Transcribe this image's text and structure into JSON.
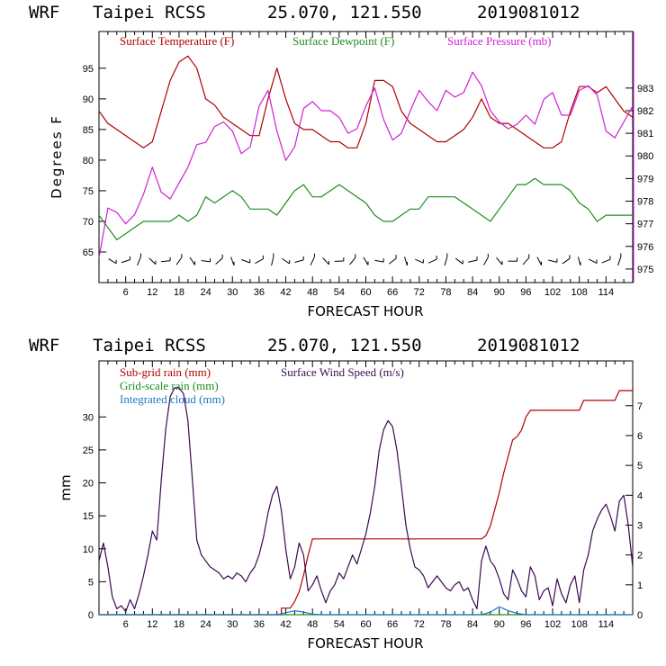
{
  "chart_data": [
    {
      "type": "line",
      "header": {
        "model": "WRF",
        "site": "Taipei RCSS",
        "coords": "25.070, 121.550",
        "init": "2019081012"
      },
      "xlabel": "FORECAST HOUR",
      "ylabel": "Degrees F",
      "xlim": [
        0,
        120
      ],
      "ylim": [
        60,
        101
      ],
      "y2lim": [
        974.4,
        985.5
      ],
      "xticks": [
        "6",
        "12",
        "18",
        "24",
        "30",
        "36",
        "42",
        "48",
        "54",
        "60",
        "66",
        "72",
        "78",
        "84",
        "90",
        "96",
        "102",
        "108",
        "114"
      ],
      "yticks": [
        "65",
        "70",
        "75",
        "80",
        "85",
        "90",
        "95"
      ],
      "y2ticks": [
        "975",
        "976",
        "977",
        "978",
        "979",
        "980",
        "981",
        "982",
        "983"
      ],
      "colors": {
        "temp": "#b00000",
        "dew": "#1e8c1e",
        "pres": "#d020d0",
        "barb": "#000000"
      },
      "series": [
        {
          "name": "Surface Temperature (F)",
          "key": "temp",
          "axis": "left",
          "x": [
            0,
            2,
            4,
            6,
            8,
            10,
            12,
            14,
            16,
            18,
            20,
            22,
            24,
            26,
            28,
            30,
            32,
            34,
            36,
            38,
            40,
            42,
            44,
            46,
            48,
            50,
            52,
            54,
            56,
            58,
            60,
            62,
            64,
            66,
            68,
            70,
            72,
            74,
            76,
            78,
            80,
            82,
            84,
            86,
            88,
            90,
            92,
            94,
            96,
            98,
            100,
            102,
            104,
            106,
            108,
            110,
            112,
            114,
            116,
            118,
            120
          ],
          "y": [
            88,
            86,
            85,
            84,
            83,
            82,
            83,
            88,
            93,
            96,
            97,
            95,
            90,
            89,
            87,
            86,
            85,
            84,
            84,
            90,
            95,
            90,
            86,
            85,
            85,
            84,
            83,
            83,
            82,
            82,
            86,
            93,
            93,
            92,
            88,
            86,
            85,
            84,
            83,
            83,
            84,
            85,
            87,
            90,
            87,
            86,
            86,
            85,
            84,
            83,
            82,
            82,
            83,
            88,
            92,
            92,
            91,
            92,
            90,
            88,
            87
          ]
        },
        {
          "name": "Surface Dewpoint (F)",
          "key": "dew",
          "axis": "left",
          "x": [
            0,
            2,
            4,
            6,
            8,
            10,
            12,
            14,
            16,
            18,
            20,
            22,
            24,
            26,
            28,
            30,
            32,
            34,
            36,
            38,
            40,
            42,
            44,
            46,
            48,
            50,
            52,
            54,
            56,
            58,
            60,
            62,
            64,
            66,
            68,
            70,
            72,
            74,
            76,
            78,
            80,
            82,
            84,
            86,
            88,
            90,
            92,
            94,
            96,
            98,
            100,
            102,
            104,
            106,
            108,
            110,
            112,
            114,
            116,
            118,
            120
          ],
          "y": [
            71,
            69,
            67,
            68,
            69,
            70,
            70,
            70,
            70,
            71,
            70,
            71,
            74,
            73,
            74,
            75,
            74,
            72,
            72,
            72,
            71,
            73,
            75,
            76,
            74,
            74,
            75,
            76,
            75,
            74,
            73,
            71,
            70,
            70,
            71,
            72,
            72,
            74,
            74,
            74,
            74,
            73,
            72,
            71,
            70,
            72,
            74,
            76,
            76,
            77,
            76,
            76,
            76,
            75,
            73,
            72,
            70,
            71,
            71,
            71,
            71
          ]
        },
        {
          "name": "Surface Pressure (mb)",
          "key": "pres",
          "axis": "right",
          "x": [
            0,
            2,
            4,
            6,
            8,
            10,
            12,
            14,
            16,
            18,
            20,
            22,
            24,
            26,
            28,
            30,
            32,
            34,
            36,
            38,
            40,
            42,
            44,
            46,
            48,
            50,
            52,
            54,
            56,
            58,
            60,
            62,
            64,
            66,
            68,
            70,
            72,
            74,
            76,
            78,
            80,
            82,
            84,
            86,
            88,
            90,
            92,
            94,
            96,
            98,
            100,
            102,
            104,
            106,
            108,
            110,
            112,
            114,
            116,
            118,
            120
          ],
          "y": [
            975.5,
            977.7,
            977.5,
            977.0,
            977.4,
            978.3,
            979.5,
            978.4,
            978.1,
            978.8,
            979.5,
            980.5,
            980.6,
            981.3,
            981.5,
            981.1,
            980.1,
            980.4,
            982.2,
            982.9,
            981.1,
            979.8,
            980.4,
            982.1,
            982.4,
            982.0,
            982.0,
            981.7,
            981.0,
            981.2,
            982.2,
            983.0,
            981.6,
            980.7,
            981.0,
            982.0,
            982.9,
            982.4,
            982.0,
            982.9,
            982.6,
            982.8,
            983.7,
            983.1,
            982.0,
            981.5,
            981.2,
            981.4,
            981.8,
            981.4,
            982.5,
            982.8,
            981.8,
            981.8,
            982.9,
            983.1,
            982.7,
            981.1,
            980.8,
            981.5,
            982.2
          ]
        }
      ],
      "wind_barbs_note": "wind barbs along bottom"
    },
    {
      "type": "line",
      "header": {
        "model": "WRF",
        "site": "Taipei RCSS",
        "coords": "25.070, 121.550",
        "init": "2019081012"
      },
      "xlabel": "FORECAST HOUR",
      "ylabel": "mm",
      "xlim": [
        0,
        120
      ],
      "ylim": [
        0,
        38.5
      ],
      "y2lim": [
        0,
        8.5
      ],
      "xticks": [
        "6",
        "12",
        "18",
        "24",
        "30",
        "36",
        "42",
        "48",
        "54",
        "60",
        "66",
        "72",
        "78",
        "84",
        "90",
        "96",
        "102",
        "108",
        "114"
      ],
      "yticks": [
        "0",
        "5",
        "10",
        "15",
        "20",
        "25",
        "30"
      ],
      "y2ticks": [
        "0",
        "1",
        "2",
        "3",
        "4",
        "5",
        "6",
        "7"
      ],
      "colors": {
        "sub": "#b00000",
        "grid": "#1e8c1e",
        "cloud": "#1c78c8",
        "wind": "#3a0a50"
      },
      "series": [
        {
          "name": "Sub-grid rain (mm)",
          "key": "sub",
          "axis": "left",
          "x": [
            0,
            41,
            41,
            43,
            44,
            45,
            46,
            47,
            48,
            86,
            87,
            88,
            89,
            90,
            91,
            92,
            93,
            94,
            95,
            96,
            97,
            98,
            99,
            100,
            108,
            109,
            110,
            116,
            117,
            120
          ],
          "y": [
            0,
            0,
            1,
            1,
            2,
            3.5,
            6,
            9,
            11.5,
            11.5,
            12,
            13.5,
            16,
            18.5,
            21.5,
            24,
            26.5,
            27,
            28,
            30,
            31,
            31,
            31,
            31,
            31,
            32.5,
            32.5,
            32.5,
            34,
            34
          ]
        },
        {
          "name": "Grid-scale rain (mm)",
          "key": "grid",
          "axis": "left",
          "x": [
            0,
            120
          ],
          "y": [
            0,
            0
          ]
        },
        {
          "name": "Integrated cloud (mm)",
          "key": "cloud",
          "axis": "left",
          "x": [
            0,
            40,
            42,
            44,
            46,
            48,
            50,
            86,
            88,
            90,
            92,
            94,
            96,
            120
          ],
          "y": [
            0,
            0,
            0.3,
            0.6,
            0.4,
            0.1,
            0,
            0,
            0.4,
            1.2,
            0.6,
            0.2,
            0,
            0
          ]
        },
        {
          "name": "Surface Wind Speed (m/s)",
          "key": "wind",
          "axis": "right",
          "x": [
            0,
            1,
            2,
            3,
            4,
            5,
            6,
            7,
            8,
            9,
            10,
            11,
            12,
            13,
            14,
            15,
            16,
            17,
            18,
            19,
            20,
            21,
            22,
            23,
            24,
            25,
            26,
            27,
            28,
            29,
            30,
            31,
            32,
            33,
            34,
            35,
            36,
            37,
            38,
            39,
            40,
            41,
            42,
            43,
            44,
            45,
            46,
            47,
            48,
            49,
            50,
            51,
            52,
            53,
            54,
            55,
            56,
            57,
            58,
            59,
            60,
            61,
            62,
            63,
            64,
            65,
            66,
            67,
            68,
            69,
            70,
            71,
            72,
            73,
            74,
            75,
            76,
            77,
            78,
            79,
            80,
            81,
            82,
            83,
            84,
            85,
            86,
            87,
            88,
            89,
            90,
            91,
            92,
            93,
            94,
            95,
            96,
            97,
            98,
            99,
            100,
            101,
            102,
            103,
            104,
            105,
            106,
            107,
            108,
            109,
            110,
            111,
            112,
            113,
            114,
            115,
            116,
            117,
            118,
            119,
            120
          ],
          "y": [
            1.8,
            2.4,
            1.6,
            0.6,
            0.2,
            0.3,
            0.1,
            0.5,
            0.2,
            0.7,
            1.3,
            2.0,
            2.8,
            2.5,
            4.5,
            6.2,
            7.3,
            7.6,
            7.6,
            7.4,
            6.5,
            4.5,
            2.5,
            2.0,
            1.8,
            1.6,
            1.5,
            1.4,
            1.2,
            1.3,
            1.2,
            1.4,
            1.3,
            1.1,
            1.4,
            1.6,
            2.0,
            2.6,
            3.4,
            4.0,
            4.3,
            3.5,
            2.2,
            1.2,
            1.6,
            2.4,
            2.0,
            0.8,
            1.0,
            1.3,
            0.8,
            0.4,
            0.8,
            1.0,
            1.4,
            1.2,
            1.6,
            2.0,
            1.7,
            2.2,
            2.7,
            3.4,
            4.3,
            5.5,
            6.2,
            6.5,
            6.3,
            5.5,
            4.3,
            3.0,
            2.2,
            1.6,
            1.5,
            1.3,
            0.9,
            1.1,
            1.3,
            1.1,
            0.9,
            0.8,
            1.0,
            1.1,
            0.8,
            0.9,
            0.5,
            0.2,
            1.8,
            2.3,
            1.8,
            1.6,
            1.2,
            0.7,
            0.5,
            1.5,
            1.2,
            0.8,
            0.6,
            1.6,
            1.3,
            0.5,
            0.8,
            0.9,
            0.3,
            1.2,
            0.7,
            0.4,
            1.0,
            1.3,
            0.4,
            1.5,
            2.0,
            2.8,
            3.2,
            3.5,
            3.7,
            3.3,
            2.8,
            3.8,
            4.0,
            3.0,
            1.6
          ]
        }
      ]
    }
  ]
}
